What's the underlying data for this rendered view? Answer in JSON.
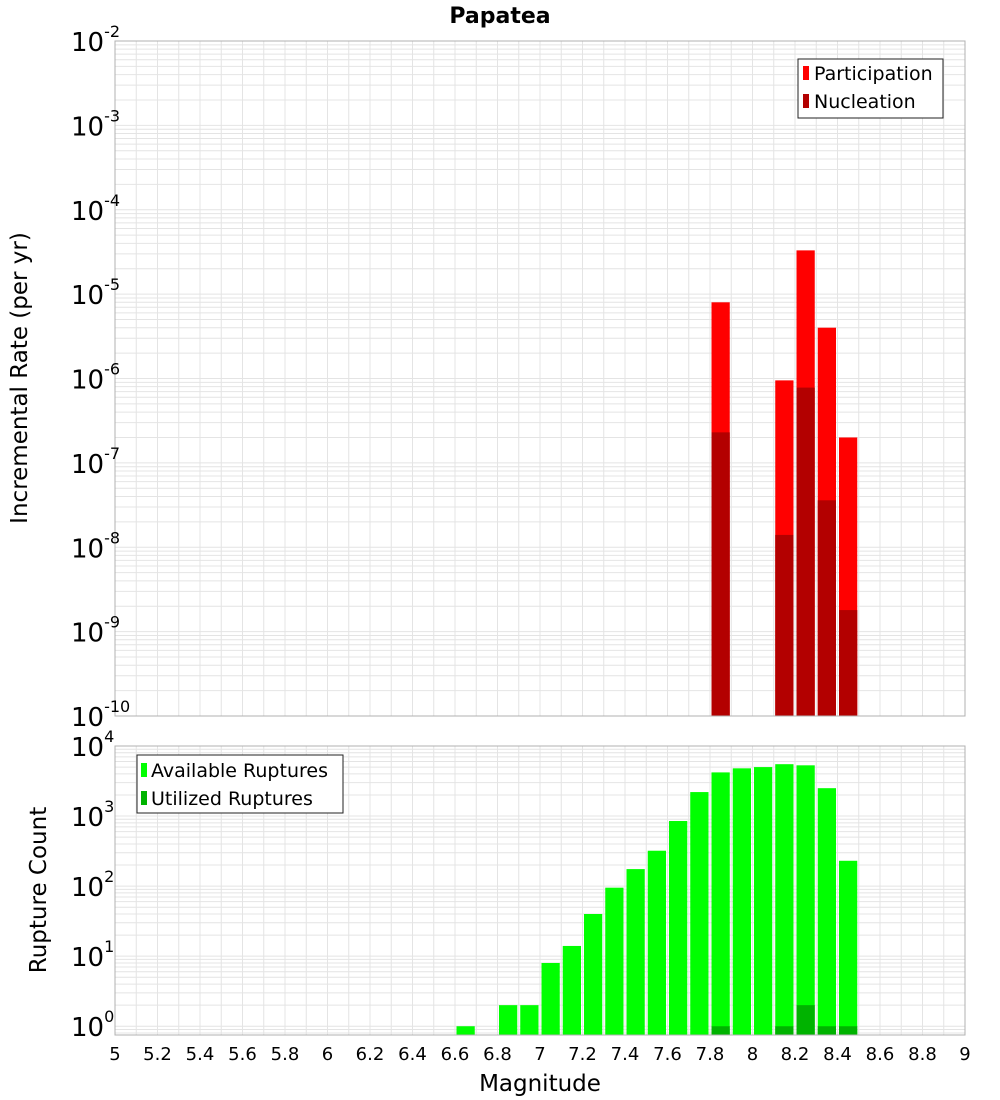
{
  "title": "Papatea",
  "colors": {
    "participation": "#ff0000",
    "nucleation": "#b30000",
    "available": "#00ff00",
    "utilized": "#00b300",
    "grid": "#e4e4e4",
    "frame": "#b0b0b0"
  },
  "x_axis": {
    "label": "Magnitude",
    "ticks": [
      "5",
      "5.2",
      "5.4",
      "5.6",
      "5.8",
      "6",
      "6.2",
      "6.4",
      "6.6",
      "6.8",
      "7",
      "7.2",
      "7.4",
      "7.6",
      "7.8",
      "8",
      "8.2",
      "8.4",
      "8.6",
      "8.8",
      "9"
    ]
  },
  "chart_data": [
    {
      "type": "bar",
      "title": "Papatea",
      "xlabel": "Magnitude",
      "ylabel": "Incremental Rate (per yr)",
      "xlim": [
        5,
        9
      ],
      "ylim": [
        1e-10,
        0.01
      ],
      "y_scale": "log",
      "grid": true,
      "legend_position": "top-right",
      "y_tick_exponents": [
        "-2",
        "-3",
        "-4",
        "-5",
        "-6",
        "-7",
        "-8",
        "-9",
        "-10"
      ],
      "series": [
        {
          "name": "Participation",
          "color": "#ff0000",
          "points": [
            {
              "x": 7.85,
              "y": 8e-06
            },
            {
              "x": 8.15,
              "y": 9.5e-07
            },
            {
              "x": 8.25,
              "y": 3.3e-05
            },
            {
              "x": 8.35,
              "y": 4e-06
            },
            {
              "x": 8.45,
              "y": 2e-07
            }
          ]
        },
        {
          "name": "Nucleation",
          "color": "#b30000",
          "points": [
            {
              "x": 7.85,
              "y": 2.3e-07
            },
            {
              "x": 8.15,
              "y": 1.4e-08
            },
            {
              "x": 8.25,
              "y": 7.8e-07
            },
            {
              "x": 8.35,
              "y": 3.6e-08
            },
            {
              "x": 8.45,
              "y": 1.8e-09
            }
          ]
        }
      ]
    },
    {
      "type": "bar",
      "xlabel": "Magnitude",
      "ylabel": "Rupture Count",
      "xlim": [
        5,
        9
      ],
      "ylim": [
        0.75,
        10000
      ],
      "y_scale": "log",
      "grid": true,
      "legend_position": "top-left",
      "y_tick_exponents": [
        "4",
        "3",
        "2",
        "1",
        "0"
      ],
      "series": [
        {
          "name": "Available Ruptures",
          "color": "#00ff00",
          "points": [
            {
              "x": 6.65,
              "y": 1
            },
            {
              "x": 6.85,
              "y": 2
            },
            {
              "x": 6.95,
              "y": 2
            },
            {
              "x": 7.05,
              "y": 8
            },
            {
              "x": 7.15,
              "y": 14
            },
            {
              "x": 7.25,
              "y": 40
            },
            {
              "x": 7.35,
              "y": 95
            },
            {
              "x": 7.45,
              "y": 175
            },
            {
              "x": 7.55,
              "y": 320
            },
            {
              "x": 7.65,
              "y": 850
            },
            {
              "x": 7.75,
              "y": 2200
            },
            {
              "x": 7.85,
              "y": 4200
            },
            {
              "x": 7.95,
              "y": 4800
            },
            {
              "x": 8.05,
              "y": 5000
            },
            {
              "x": 8.15,
              "y": 5500
            },
            {
              "x": 8.25,
              "y": 5300
            },
            {
              "x": 8.35,
              "y": 2500
            },
            {
              "x": 8.45,
              "y": 230
            }
          ]
        },
        {
          "name": "Utilized Ruptures",
          "color": "#00b300",
          "points": [
            {
              "x": 7.85,
              "y": 1
            },
            {
              "x": 8.15,
              "y": 1
            },
            {
              "x": 8.25,
              "y": 2
            },
            {
              "x": 8.35,
              "y": 1
            },
            {
              "x": 8.45,
              "y": 1
            }
          ]
        }
      ]
    }
  ]
}
